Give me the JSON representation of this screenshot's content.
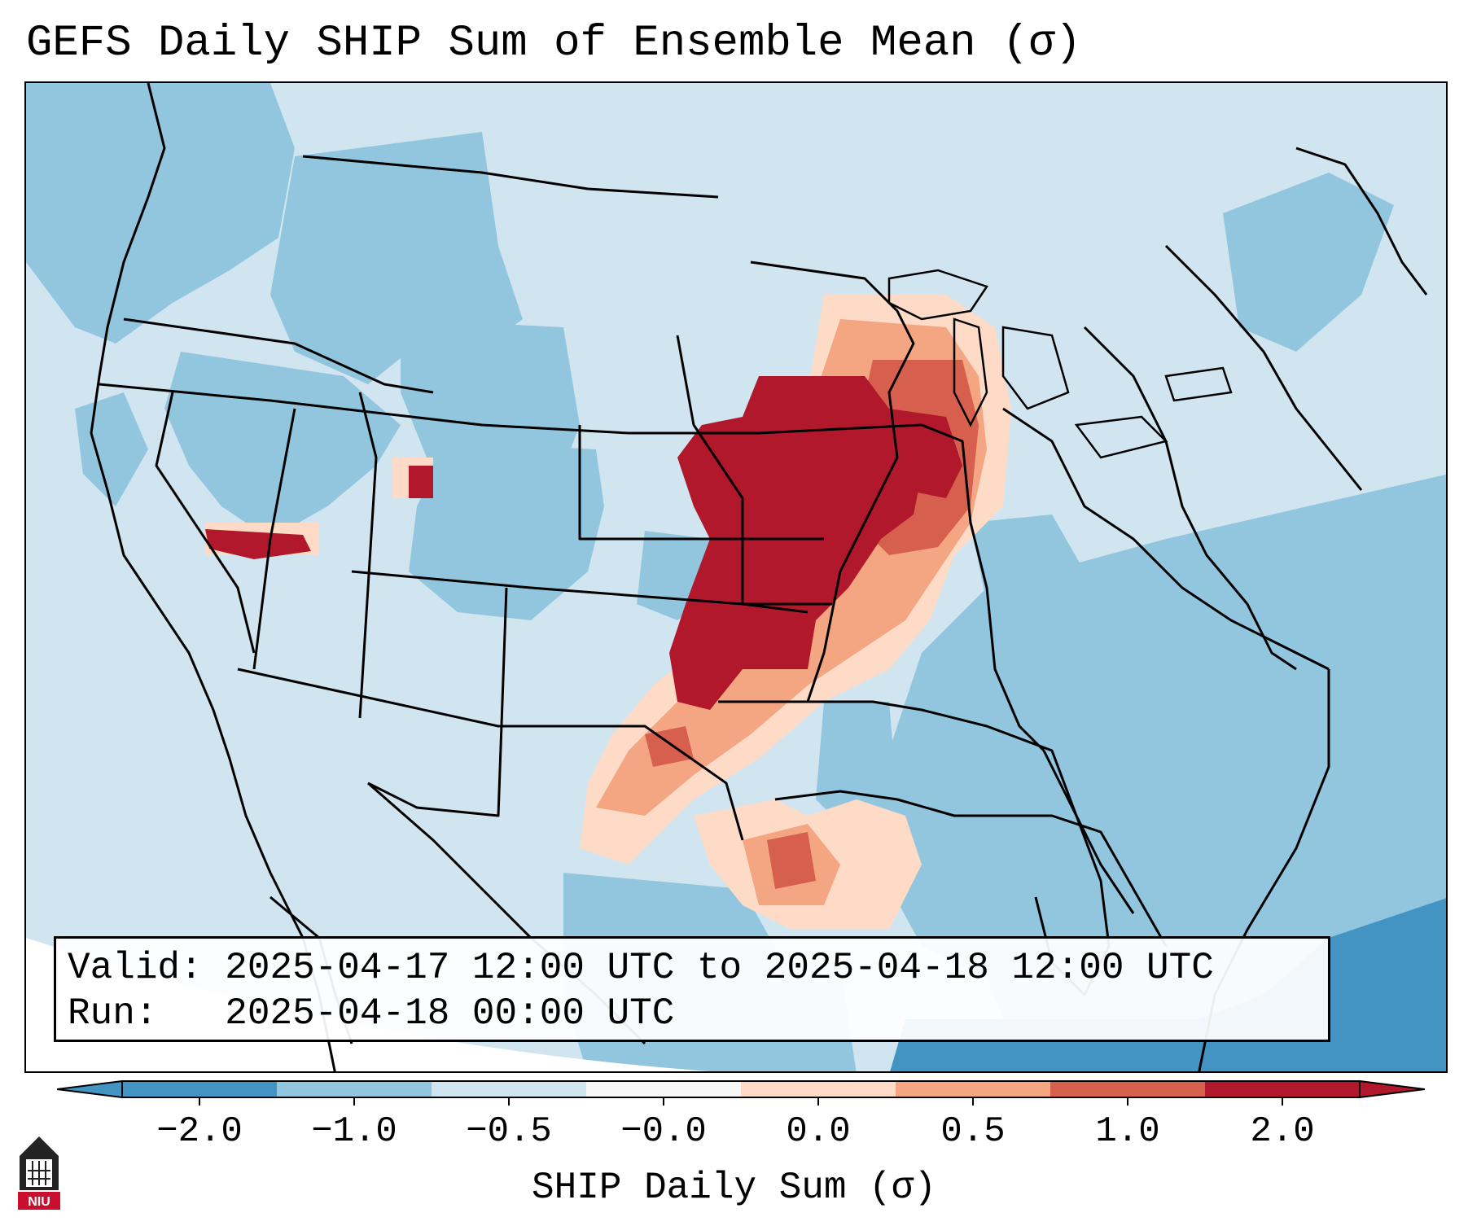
{
  "title": "GEFS Daily SHIP Sum of Ensemble Mean (σ)",
  "info": {
    "valid_label": "Valid:",
    "valid_value": "2025-04-17 12:00 UTC to 2025-04-18 12:00 UTC",
    "run_label": "Run:",
    "run_value": "2025-04-18 00:00 UTC"
  },
  "colorbar": {
    "label": "SHIP Daily Sum (σ)",
    "ticks": [
      "−2.0",
      "−1.0",
      "−0.5",
      "−0.0",
      "0.0",
      "0.5",
      "1.0",
      "2.0"
    ],
    "colors": [
      "#4393c3",
      "#92c5de",
      "#d1e5f0",
      "#f7f7f7",
      "#fddbc7",
      "#f4a582",
      "#d6604d",
      "#b2182b"
    ],
    "extend": "both"
  },
  "map": {
    "projection": "Lambert conformal (CONUS)",
    "region": "Continental United States",
    "palette": {
      "strong_negative": "#4393c3",
      "negative": "#92c5de",
      "weak_negative": "#d1e5f0",
      "weak_positive": "#fddbc7",
      "positive": "#f4a582",
      "strong_positive": "#d6604d",
      "very_strong_positive": "#b2182b"
    }
  },
  "logo": {
    "text": "NIU",
    "icon": "university-tower-icon"
  }
}
